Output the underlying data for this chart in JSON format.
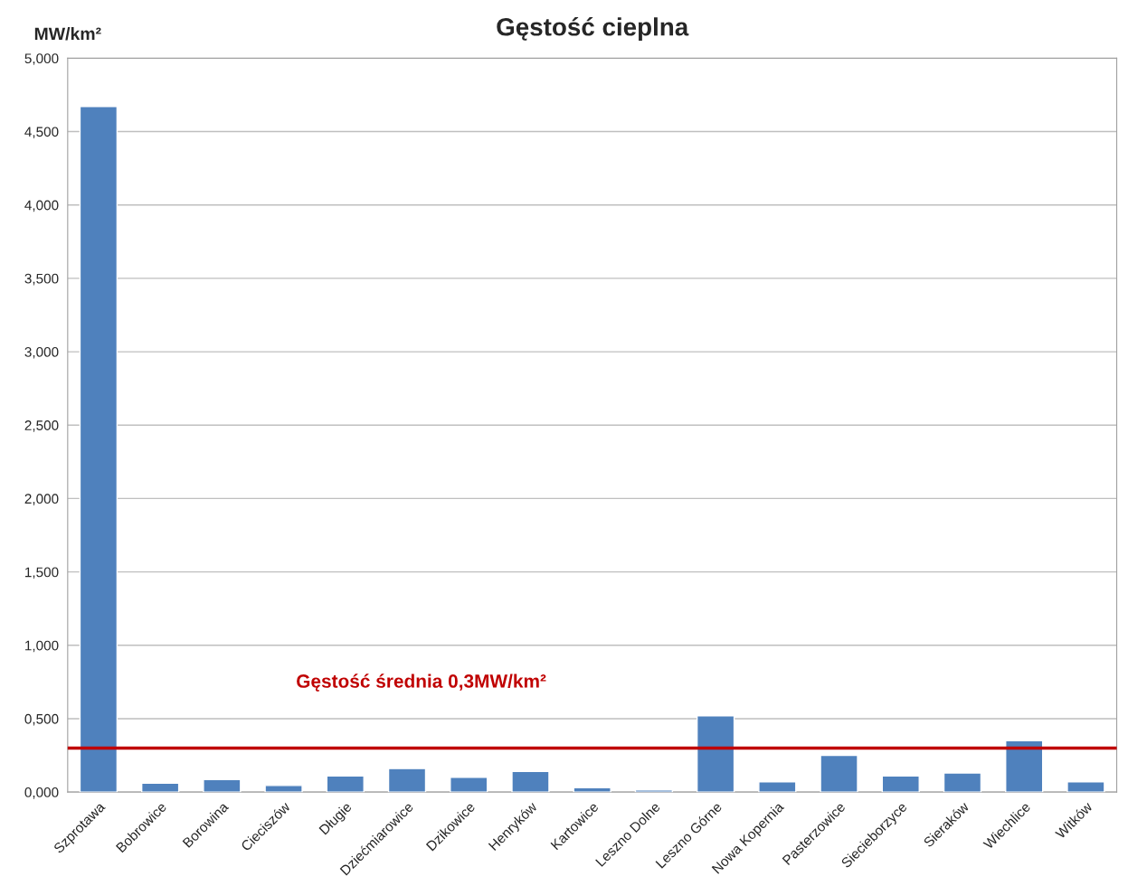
{
  "chart_data": {
    "type": "bar",
    "title": "Gęstość cieplna",
    "ylabel": "MW/km²",
    "categories": [
      "Szprotawa",
      "Bobrowice",
      "Borowina",
      "Cieciszów",
      "Długie",
      "Dziećmiarowice",
      "Dzikowice",
      "Henryków",
      "Kartowice",
      "Leszno Dolne",
      "Leszno Górne",
      "Nowa Kopernia",
      "Pasterzowice",
      "Siecieborzyce",
      "Sieraków",
      "Wiechlice",
      "Witków"
    ],
    "values": [
      4.67,
      0.06,
      0.085,
      0.045,
      0.11,
      0.16,
      0.1,
      0.14,
      0.03,
      0.015,
      0.52,
      0.07,
      0.25,
      0.11,
      0.13,
      0.35,
      0.07
    ],
    "color": "#4f81bd",
    "ylim": [
      0,
      5
    ],
    "yticks": [
      {
        "value": 0,
        "label": "0,000"
      },
      {
        "value": 0.5,
        "label": "0,500"
      },
      {
        "value": 1,
        "label": "1,000"
      },
      {
        "value": 1.5,
        "label": "1,500"
      },
      {
        "value": 2,
        "label": "2,000"
      },
      {
        "value": 2.5,
        "label": "2,500"
      },
      {
        "value": 3,
        "label": "3,000"
      },
      {
        "value": 3.5,
        "label": "3,500"
      },
      {
        "value": 4,
        "label": "4,000"
      },
      {
        "value": 4.5,
        "label": "4,500"
      },
      {
        "value": 5,
        "label": "5,000"
      }
    ],
    "ref_lines": [
      {
        "axis": "y",
        "value": 0.3,
        "label": "Gęstość średnia 0,3MW/km²",
        "color": "#c00000"
      }
    ],
    "grid": "y"
  }
}
